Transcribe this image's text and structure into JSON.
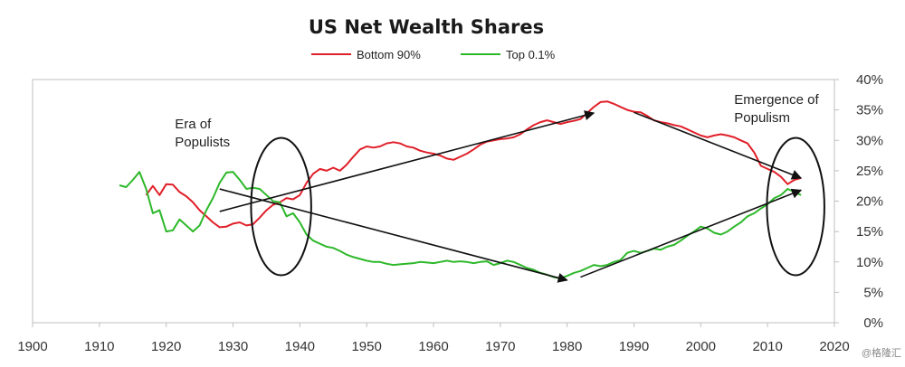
{
  "watermark": "@格隆汇",
  "colors": {
    "bottom90": "#e0202a",
    "top01": "#2db82a",
    "arrow": "#111111",
    "axis": "#bfbfbf"
  },
  "chart_data": {
    "type": "line",
    "title": "US Net Wealth Shares",
    "xlabel": "",
    "ylabel": "",
    "xlim": [
      1900,
      2020
    ],
    "ylim": [
      0,
      40
    ],
    "x_ticks": [
      "1900",
      "1910",
      "1920",
      "1930",
      "1940",
      "1950",
      "1960",
      "1970",
      "1980",
      "1990",
      "2000",
      "2010",
      "2020"
    ],
    "y_ticks": [
      "0%",
      "5%",
      "10%",
      "15%",
      "20%",
      "25%",
      "30%",
      "35%",
      "40%"
    ],
    "legend_position": "top-center",
    "series": [
      {
        "name": "Bottom 90%",
        "color": "#e0202a",
        "points": [
          [
            1917,
            21.0
          ],
          [
            1918,
            22.5
          ],
          [
            1919,
            21.0
          ],
          [
            1920,
            22.8
          ],
          [
            1921,
            22.7
          ],
          [
            1922,
            21.5
          ],
          [
            1923,
            20.8
          ],
          [
            1924,
            19.8
          ],
          [
            1925,
            18.5
          ],
          [
            1926,
            17.5
          ],
          [
            1927,
            16.5
          ],
          [
            1928,
            15.7
          ],
          [
            1929,
            15.8
          ],
          [
            1930,
            16.3
          ],
          [
            1931,
            16.5
          ],
          [
            1932,
            16.0
          ],
          [
            1933,
            16.2
          ],
          [
            1934,
            17.3
          ],
          [
            1935,
            18.5
          ],
          [
            1936,
            19.4
          ],
          [
            1937,
            19.8
          ],
          [
            1938,
            20.5
          ],
          [
            1939,
            20.3
          ],
          [
            1940,
            21.0
          ],
          [
            1941,
            23.0
          ],
          [
            1942,
            24.5
          ],
          [
            1943,
            25.3
          ],
          [
            1944,
            25.0
          ],
          [
            1945,
            25.5
          ],
          [
            1946,
            25.0
          ],
          [
            1947,
            26.0
          ],
          [
            1948,
            27.3
          ],
          [
            1949,
            28.5
          ],
          [
            1950,
            29.0
          ],
          [
            1951,
            28.8
          ],
          [
            1952,
            29.0
          ],
          [
            1953,
            29.5
          ],
          [
            1954,
            29.7
          ],
          [
            1955,
            29.5
          ],
          [
            1956,
            29.0
          ],
          [
            1957,
            28.8
          ],
          [
            1958,
            28.3
          ],
          [
            1959,
            28.0
          ],
          [
            1960,
            27.8
          ],
          [
            1961,
            27.5
          ],
          [
            1962,
            27.0
          ],
          [
            1963,
            26.8
          ],
          [
            1964,
            27.3
          ],
          [
            1965,
            27.8
          ],
          [
            1966,
            28.5
          ],
          [
            1967,
            29.3
          ],
          [
            1968,
            29.8
          ],
          [
            1969,
            30.0
          ],
          [
            1970,
            30.2
          ],
          [
            1971,
            30.3
          ],
          [
            1972,
            30.5
          ],
          [
            1973,
            31.0
          ],
          [
            1974,
            31.8
          ],
          [
            1975,
            32.5
          ],
          [
            1976,
            33.0
          ],
          [
            1977,
            33.3
          ],
          [
            1978,
            33.0
          ],
          [
            1979,
            32.7
          ],
          [
            1980,
            33.0
          ],
          [
            1981,
            33.2
          ],
          [
            1982,
            33.5
          ],
          [
            1983,
            34.5
          ],
          [
            1984,
            35.5
          ],
          [
            1985,
            36.3
          ],
          [
            1986,
            36.4
          ],
          [
            1987,
            36.0
          ],
          [
            1988,
            35.5
          ],
          [
            1989,
            35.0
          ],
          [
            1990,
            34.7
          ],
          [
            1991,
            34.6
          ],
          [
            1992,
            34.0
          ],
          [
            1993,
            33.3
          ],
          [
            1994,
            33.0
          ],
          [
            1995,
            32.8
          ],
          [
            1996,
            32.5
          ],
          [
            1997,
            32.3
          ],
          [
            1998,
            31.8
          ],
          [
            1999,
            31.3
          ],
          [
            2000,
            30.8
          ],
          [
            2001,
            30.5
          ],
          [
            2002,
            30.8
          ],
          [
            2003,
            31.0
          ],
          [
            2004,
            30.8
          ],
          [
            2005,
            30.5
          ],
          [
            2006,
            30.0
          ],
          [
            2007,
            29.5
          ],
          [
            2008,
            28.0
          ],
          [
            2009,
            25.8
          ],
          [
            2010,
            25.3
          ],
          [
            2011,
            24.8
          ],
          [
            2012,
            24.0
          ],
          [
            2013,
            22.8
          ],
          [
            2014,
            23.5
          ],
          [
            2015,
            23.8
          ]
        ]
      },
      {
        "name": "Top 0.1%",
        "color": "#2db82a",
        "points": [
          [
            1913,
            22.6
          ],
          [
            1914,
            22.3
          ],
          [
            1915,
            23.5
          ],
          [
            1916,
            24.8
          ],
          [
            1917,
            22.0
          ],
          [
            1918,
            18.0
          ],
          [
            1919,
            18.5
          ],
          [
            1920,
            15.0
          ],
          [
            1921,
            15.2
          ],
          [
            1922,
            17.0
          ],
          [
            1923,
            16.0
          ],
          [
            1924,
            15.0
          ],
          [
            1925,
            16.0
          ],
          [
            1926,
            18.5
          ],
          [
            1927,
            20.5
          ],
          [
            1928,
            23.0
          ],
          [
            1929,
            24.7
          ],
          [
            1930,
            24.8
          ],
          [
            1931,
            23.5
          ],
          [
            1932,
            22.0
          ],
          [
            1933,
            22.2
          ],
          [
            1934,
            22.0
          ],
          [
            1935,
            21.0
          ],
          [
            1936,
            20.0
          ],
          [
            1937,
            19.8
          ],
          [
            1938,
            17.5
          ],
          [
            1939,
            18.0
          ],
          [
            1940,
            16.5
          ],
          [
            1941,
            14.5
          ],
          [
            1942,
            13.5
          ],
          [
            1943,
            13.0
          ],
          [
            1944,
            12.5
          ],
          [
            1945,
            12.3
          ],
          [
            1946,
            11.8
          ],
          [
            1947,
            11.2
          ],
          [
            1948,
            10.8
          ],
          [
            1949,
            10.5
          ],
          [
            1950,
            10.2
          ],
          [
            1951,
            10.0
          ],
          [
            1952,
            10.0
          ],
          [
            1953,
            9.7
          ],
          [
            1954,
            9.5
          ],
          [
            1955,
            9.6
          ],
          [
            1956,
            9.7
          ],
          [
            1957,
            9.8
          ],
          [
            1958,
            10.0
          ],
          [
            1959,
            9.9
          ],
          [
            1960,
            9.8
          ],
          [
            1961,
            10.0
          ],
          [
            1962,
            10.2
          ],
          [
            1963,
            10.0
          ],
          [
            1964,
            10.1
          ],
          [
            1965,
            10.0
          ],
          [
            1966,
            9.8
          ],
          [
            1967,
            10.0
          ],
          [
            1968,
            10.1
          ],
          [
            1969,
            9.5
          ],
          [
            1970,
            9.8
          ],
          [
            1971,
            10.2
          ],
          [
            1972,
            10.0
          ],
          [
            1973,
            9.5
          ],
          [
            1974,
            9.0
          ],
          [
            1975,
            8.7
          ],
          [
            1976,
            8.2
          ],
          [
            1977,
            7.9
          ],
          [
            1978,
            7.5
          ],
          [
            1979,
            7.3
          ],
          [
            1980,
            7.7
          ],
          [
            1981,
            8.2
          ],
          [
            1982,
            8.5
          ],
          [
            1983,
            9.0
          ],
          [
            1984,
            9.5
          ],
          [
            1985,
            9.3
          ],
          [
            1986,
            9.5
          ],
          [
            1987,
            10.0
          ],
          [
            1988,
            10.3
          ],
          [
            1989,
            11.5
          ],
          [
            1990,
            11.8
          ],
          [
            1991,
            11.5
          ],
          [
            1992,
            11.8
          ],
          [
            1993,
            12.2
          ],
          [
            1994,
            12.0
          ],
          [
            1995,
            12.5
          ],
          [
            1996,
            12.8
          ],
          [
            1997,
            13.5
          ],
          [
            1998,
            14.3
          ],
          [
            1999,
            15.0
          ],
          [
            2000,
            15.8
          ],
          [
            2001,
            15.5
          ],
          [
            2002,
            14.8
          ],
          [
            2003,
            14.5
          ],
          [
            2004,
            15.0
          ],
          [
            2005,
            15.8
          ],
          [
            2006,
            16.5
          ],
          [
            2007,
            17.5
          ],
          [
            2008,
            18.0
          ],
          [
            2009,
            18.8
          ],
          [
            2010,
            19.5
          ],
          [
            2011,
            20.5
          ],
          [
            2012,
            21.0
          ],
          [
            2013,
            22.0
          ],
          [
            2014,
            21.5
          ],
          [
            2015,
            21.0
          ]
        ]
      }
    ],
    "annotations": [
      {
        "name": "era-of-populists",
        "lines": [
          "Era of",
          "Populists"
        ],
        "x": 1921.3,
        "y": 32.0
      },
      {
        "name": "emergence-of-populism",
        "lines": [
          "Emergence of",
          "Populism"
        ],
        "x": 2005.0,
        "y": 36.0
      }
    ],
    "arrows": [
      {
        "name": "arrow-bottom90-rise",
        "from": [
          1928,
          18.3
        ],
        "to": [
          1984,
          34.5
        ]
      },
      {
        "name": "arrow-top01-decline",
        "from": [
          1928,
          22.0
        ],
        "to": [
          1980,
          7.0
        ]
      },
      {
        "name": "arrow-bottom90-decline",
        "from": [
          1990,
          34.6
        ],
        "to": [
          2015,
          23.8
        ]
      },
      {
        "name": "arrow-top01-rise",
        "from": [
          1982,
          7.5
        ],
        "to": [
          2015,
          21.8
        ]
      }
    ],
    "ellipses": [
      {
        "name": "populists-ellipse",
        "cx": 1937.2,
        "cy": 19.1,
        "rx": 4.5,
        "ry": 11.3
      },
      {
        "name": "populism-ellipse",
        "cx": 2014.2,
        "cy": 19.1,
        "rx": 4.3,
        "ry": 11.3
      }
    ]
  }
}
